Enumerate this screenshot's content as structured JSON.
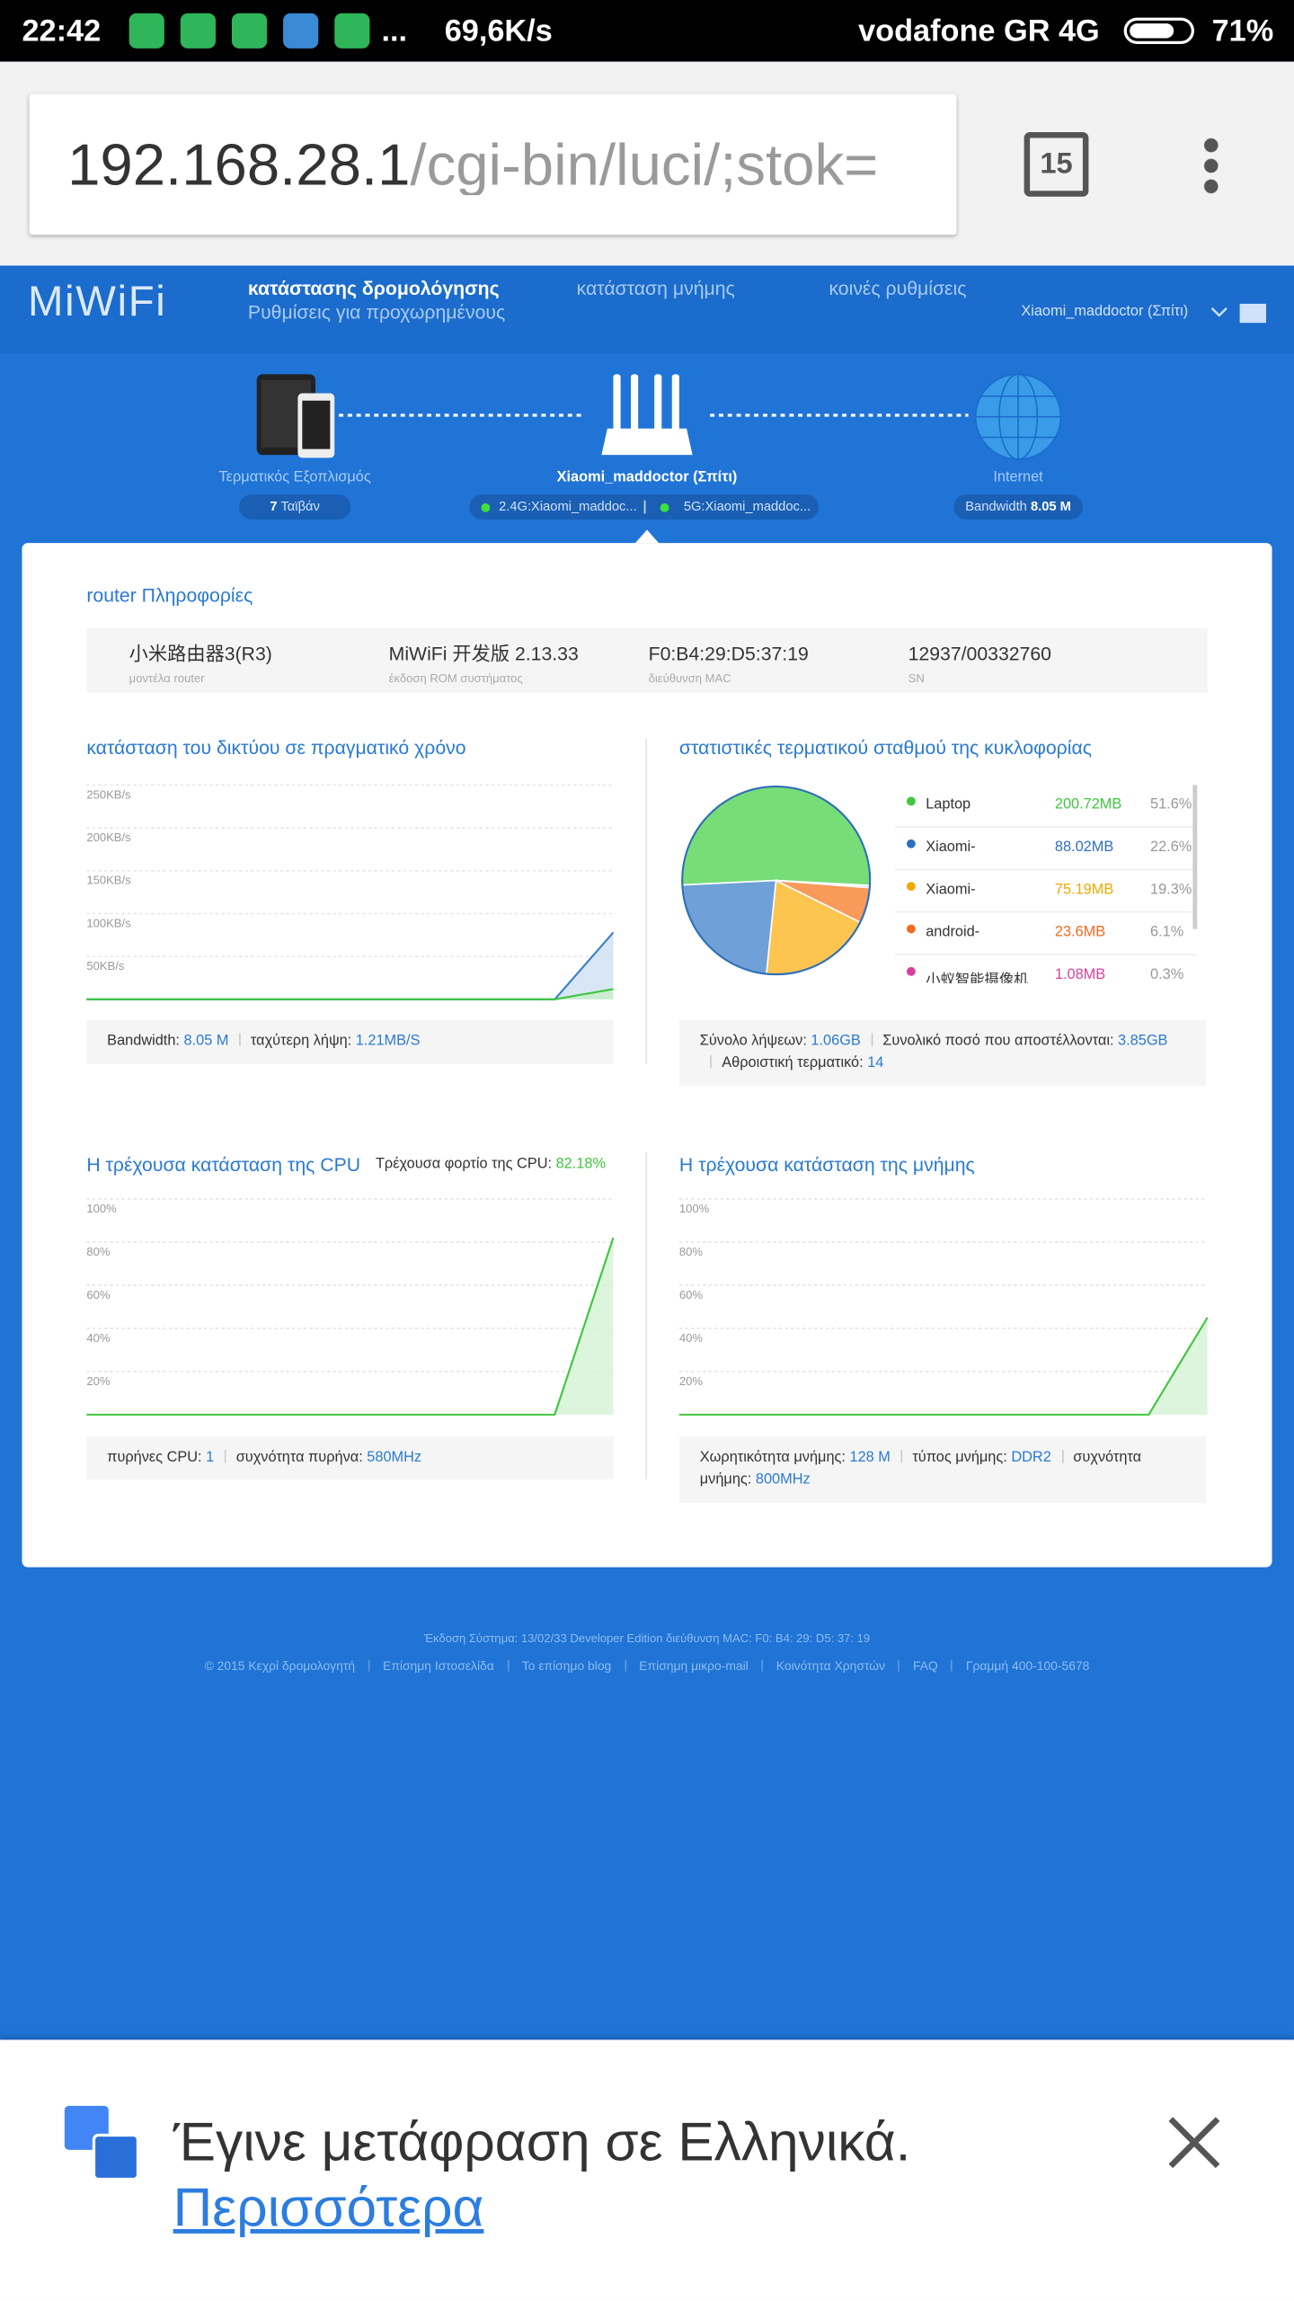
{
  "status_bar": {
    "time": "22:42",
    "more": "...",
    "speed": "69,6K/s",
    "carrier": "vodafone GR 4G",
    "battery": "71%"
  },
  "browser": {
    "url_host": "192.168.28.1",
    "url_path": "/cgi-bin/luci/;stok=",
    "tab_count": "15"
  },
  "header": {
    "logo": "MiWiFi",
    "nav": [
      "κατάστασης δρομολόγησης",
      "κατάσταση μνήμης",
      "κοινές ρυθμίσεις"
    ],
    "subnav": "Ρυθμίσεις για προχωρημένους",
    "account": "Xiaomi_maddoctor (Σπίτι)"
  },
  "topology": {
    "devices": {
      "label": "Τερματικός Εξοπλισμός",
      "count": "7",
      "count_unit": "Ταϊβάν"
    },
    "router": {
      "label": "Xiaomi_maddoctor (Σπίτι)",
      "wifi": [
        "2.4G:Xiaomi_maddoc...",
        "5G:Xiaomi_maddoc..."
      ]
    },
    "internet": {
      "label": "Internet",
      "bandwidth_label": "Bandwidth",
      "bandwidth": "8.05 M"
    }
  },
  "router_info": {
    "title": "router Πληροφορίες",
    "items": [
      {
        "value": "小米路由器3(R3)",
        "label": "μοντέλα router"
      },
      {
        "value": "MiWiFi 开发版 2.13.33",
        "label": "έκδοση ROM συστήματος"
      },
      {
        "value": "F0:B4:29:D5:37:19",
        "label": "διεύθυνση MAC"
      },
      {
        "value": "12937/00332760",
        "label": "SN"
      }
    ]
  },
  "network": {
    "type": "line",
    "title": "κατάσταση του δικτύου σε πραγματικό χρόνο",
    "ylim": [
      0,
      250
    ],
    "yticks": [
      {
        "value": 50,
        "label": "50KB/s"
      },
      {
        "value": 100,
        "label": "100KB/s"
      },
      {
        "value": 150,
        "label": "150KB/s"
      },
      {
        "value": 200,
        "label": "200KB/s"
      },
      {
        "value": 250,
        "label": "250KB/s"
      }
    ],
    "series": [
      {
        "color": "#3a7fd0",
        "fill": "#cfe0f3",
        "values": [
          0,
          0,
          0,
          0,
          0,
          0,
          0,
          0,
          0,
          78
        ]
      },
      {
        "color": "#3ec63e",
        "fill": "#c9efc9",
        "values": [
          0,
          0,
          0,
          0,
          0,
          0,
          0,
          0,
          0,
          12
        ]
      }
    ],
    "stats": [
      {
        "label": "Bandwidth:",
        "value": "8.05 M"
      },
      {
        "label": "ταχύτερη λήψη:",
        "value": "1.21MB/S"
      }
    ]
  },
  "traffic": {
    "type": "pie",
    "title": "στατιστικές τερματικού σταθμού της κυκλοφορίας",
    "categories": [
      "Laptop",
      "Xiaomi-",
      "Xiaomi-",
      "android-",
      "小蚁智能摄像机"
    ],
    "values": [
      51.6,
      22.6,
      19.3,
      6.1,
      0.3
    ],
    "value_labels": [
      "51.6%",
      "22.6%",
      "19.3%",
      "6.1%",
      "0.3%"
    ],
    "sizes": [
      "200.72MB",
      "88.02MB",
      "75.19MB",
      "23.6MB",
      "1.08MB"
    ],
    "colors": [
      "#77dd77",
      "#6fa0d8",
      "#fdc44f",
      "#f89a5a",
      "#e86ab8"
    ],
    "text_colors": [
      "#3ec63e",
      "#2f6fc0",
      "#f0a800",
      "#f26b1d",
      "#d6409a"
    ],
    "stats": [
      {
        "label": "Σύνολο λήψεων:",
        "value": "1.06GB"
      },
      {
        "label": "Συνολικό ποσό που αποστέλλονται:",
        "value": "3.85GB"
      },
      {
        "label": "Αθροιστική τερματικό:",
        "value": "14"
      }
    ]
  },
  "cpu": {
    "type": "line",
    "title": "Η τρέχουσα κατάσταση της CPU",
    "load_label": "Τρέχουσα φορτίο της CPU:",
    "load": "82.18%",
    "ylim": [
      0,
      100
    ],
    "yticks": [
      {
        "value": 20,
        "label": "20%"
      },
      {
        "value": 40,
        "label": "40%"
      },
      {
        "value": 60,
        "label": "60%"
      },
      {
        "value": 80,
        "label": "80%"
      },
      {
        "value": 100,
        "label": "100%"
      }
    ],
    "series": [
      {
        "color": "#3ec63e",
        "fill": "#d4f2d4",
        "values": [
          0,
          0,
          0,
          0,
          0,
          0,
          0,
          0,
          0,
          82
        ]
      }
    ],
    "stats": [
      {
        "label": "πυρήνες CPU:",
        "value": "1"
      },
      {
        "label": "συχνότητα πυρήνα:",
        "value": "580MHz"
      }
    ]
  },
  "memory": {
    "type": "line",
    "title": "Η τρέχουσα κατάσταση της μνήμης",
    "ylim": [
      0,
      100
    ],
    "yticks": [
      {
        "value": 20,
        "label": "20%"
      },
      {
        "value": 40,
        "label": "40%"
      },
      {
        "value": 60,
        "label": "60%"
      },
      {
        "value": 80,
        "label": "80%"
      },
      {
        "value": 100,
        "label": "100%"
      }
    ],
    "series": [
      {
        "color": "#3ec63e",
        "fill": "#d4f2d4",
        "values": [
          0,
          0,
          0,
          0,
          0,
          0,
          0,
          0,
          0,
          45
        ]
      }
    ],
    "stats": [
      {
        "label": "Χωρητικότητα μνήμης:",
        "value": "128 M"
      },
      {
        "label": "τύπος μνήμης:",
        "value": "DDR2"
      },
      {
        "label": "συχνότητα μνήμης:",
        "value": "800MHz"
      }
    ]
  },
  "footer": {
    "version": "Έκδοση Σύστημα: 13/02/33 Developer Edition διεύθυνση MAC: F0: B4: 29: D5: 37: 19",
    "links": [
      "© 2015 Κεχρί δρομολογητή",
      "Επίσημη Ιστοσελίδα",
      "Το επίσημο blog",
      "Επίσημη μικρο-mail",
      "Κοινότητα Χρηστών",
      "FAQ",
      "Γραμμή 400-100-5678"
    ]
  },
  "translate": {
    "message": "Έγινε μετάφραση σε Ελληνικά.",
    "more": "Περισσότερα"
  }
}
